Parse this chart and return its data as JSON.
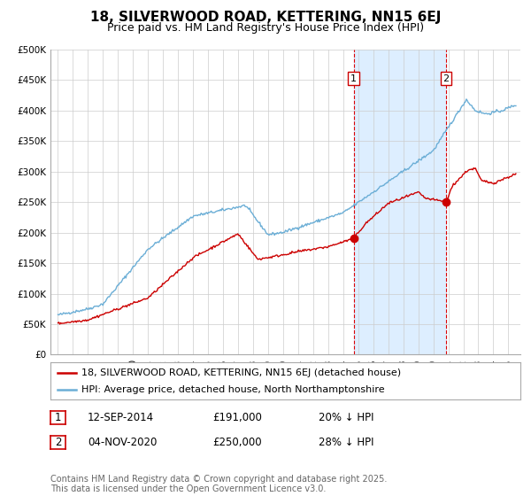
{
  "title": "18, SILVERWOOD ROAD, KETTERING, NN15 6EJ",
  "subtitle": "Price paid vs. HM Land Registry's House Price Index (HPI)",
  "hpi_color": "#6baed6",
  "price_color": "#cc0000",
  "bg_color": "#ffffff",
  "shaded_region_color": "#ddeeff",
  "grid_color": "#cccccc",
  "transaction1_date": 2014.7,
  "transaction1_price": 191000,
  "transaction2_date": 2020.84,
  "transaction2_price": 250000,
  "ylim": [
    0,
    500000
  ],
  "xlim_start": 1994.5,
  "xlim_end": 2025.8,
  "legend_label_price": "18, SILVERWOOD ROAD, KETTERING, NN15 6EJ (detached house)",
  "legend_label_hpi": "HPI: Average price, detached house, North Northamptonshire",
  "table_row1": [
    "1",
    "12-SEP-2014",
    "£191,000",
    "20% ↓ HPI"
  ],
  "table_row2": [
    "2",
    "04-NOV-2020",
    "£250,000",
    "28% ↓ HPI"
  ],
  "footer": "Contains HM Land Registry data © Crown copyright and database right 2025.\nThis data is licensed under the Open Government Licence v3.0.",
  "title_fontsize": 11,
  "subtitle_fontsize": 9,
  "tick_fontsize": 7.5,
  "legend_fontsize": 8,
  "table_fontsize": 8.5,
  "footer_fontsize": 7
}
